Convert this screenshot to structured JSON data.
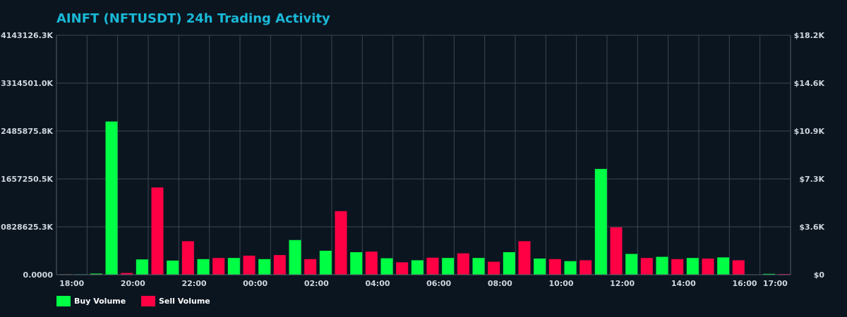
{
  "chart_data": {
    "type": "bar",
    "title": "AINFT (NFTUSDT) 24h Trading Activity",
    "xlabel": "",
    "ylabel": "",
    "x_ticks": [
      "18:00",
      "20:00",
      "22:00",
      "00:00",
      "02:00",
      "04:00",
      "06:00",
      "08:00",
      "10:00",
      "12:00",
      "14:00",
      "16:00",
      "17:00"
    ],
    "y_left_ticks": [
      "0.0000",
      "0828625.3K",
      "1657250.5K",
      "2485875.8K",
      "3314501.0K",
      "4143126.3K"
    ],
    "y_right_ticks": [
      "$0",
      "$3.6K",
      "$7.3K",
      "$10.9K",
      "$14.6K",
      "$18.2K"
    ],
    "ylim": [
      0,
      4143126.3
    ],
    "grid": true,
    "legend_position": "bottom-left",
    "colors": {
      "buy": "#00ff44",
      "sell": "#ff0044"
    },
    "series": [
      {
        "name": "Buy Volume",
        "values": [
          8000,
          8000,
          20000,
          2650000,
          265000,
          245000,
          270000,
          290000,
          270000,
          600000,
          415000,
          390000,
          285000,
          250000,
          290000,
          290000,
          390000,
          280000,
          235000,
          1830000,
          360000,
          310000,
          290000,
          300000,
          15000
        ]
      },
      {
        "name": "Sell Volume",
        "values": [
          8000,
          8000,
          30000,
          1510000,
          580000,
          290000,
          330000,
          340000,
          270000,
          1100000,
          400000,
          215000,
          295000,
          370000,
          225000,
          580000,
          270000,
          250000,
          820000,
          290000,
          270000,
          280000,
          250000,
          12000
        ]
      }
    ],
    "buy_x": [
      0.3,
      0.8,
      1.3,
      1.8,
      2.8,
      3.8,
      4.8,
      5.8,
      6.8,
      7.8,
      8.8,
      9.8,
      10.8,
      11.8,
      12.8,
      13.8,
      14.8,
      15.8,
      16.8,
      17.8,
      18.8,
      19.8,
      20.8,
      21.8,
      23.3
    ],
    "sell_x": [
      0.3,
      1.3,
      2.3,
      3.3,
      4.3,
      5.3,
      6.3,
      7.3,
      8.3,
      9.3,
      10.3,
      11.3,
      12.3,
      13.3,
      14.3,
      15.3,
      16.3,
      17.3,
      18.3,
      19.3,
      20.3,
      21.3,
      22.3,
      23.8
    ]
  }
}
